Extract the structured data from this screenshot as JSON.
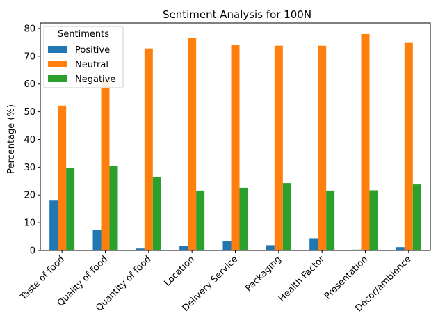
{
  "chart_data": {
    "type": "bar",
    "title": "Sentiment Analysis for 100N",
    "xlabel": "",
    "ylabel": "Percentage (%)",
    "ylim": [
      0,
      82
    ],
    "yticks": [
      0,
      10,
      20,
      30,
      40,
      50,
      60,
      70,
      80
    ],
    "categories": [
      "Taste of food",
      "Quality of food",
      "Quantity of food",
      "Location",
      "Delivery Service",
      "Packaging",
      "Health Factor",
      "Presentation",
      "Décor/ambience"
    ],
    "series": [
      {
        "name": "Positive",
        "color": "#1f77b4",
        "values": [
          18.0,
          7.5,
          0.7,
          1.7,
          3.4,
          1.9,
          4.4,
          0.3,
          1.2
        ]
      },
      {
        "name": "Neutral",
        "color": "#ff7f0e",
        "values": [
          52.2,
          62.0,
          72.8,
          76.7,
          74.0,
          73.8,
          73.8,
          78.0,
          74.8
        ]
      },
      {
        "name": "Negative",
        "color": "#2ca02c",
        "values": [
          29.8,
          30.5,
          26.4,
          21.6,
          22.6,
          24.3,
          21.6,
          21.7,
          23.8
        ]
      }
    ],
    "legend": {
      "title": "Sentiments",
      "placement": "top-left"
    },
    "grid": false
  }
}
